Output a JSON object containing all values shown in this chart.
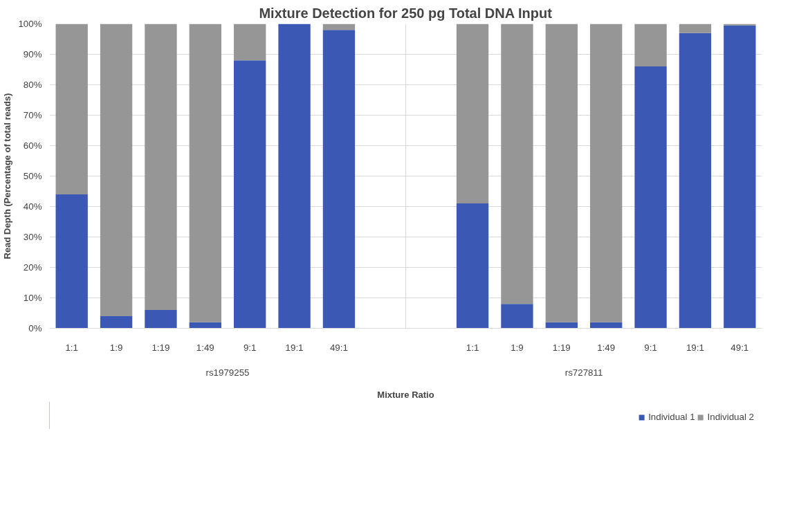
{
  "chart_data": {
    "type": "bar",
    "stacked": true,
    "title": "Mixture Detection for 250 pg Total DNA Input",
    "xlabel": "Mixture Ratio",
    "ylabel": "Read Depth (Percentage of total reads)",
    "categories": [
      "1:1",
      "1:9",
      "1:19",
      "1:49",
      "9:1",
      "19:1",
      "49:1",
      null,
      null,
      "1:1",
      "1:9",
      "1:19",
      "1:49",
      "9:1",
      "19:1",
      "49:1"
    ],
    "series": [
      {
        "name": "Individual 1",
        "color": "#3a58b4",
        "values": [
          44,
          4,
          6,
          2,
          88,
          100,
          98,
          null,
          null,
          41,
          8,
          2,
          2,
          86,
          97,
          99.5
        ]
      },
      {
        "name": "Individual 2",
        "color": "#969696",
        "values": [
          56,
          96,
          94,
          98,
          12,
          0,
          2,
          null,
          null,
          59,
          92,
          98,
          98,
          14,
          3,
          0.5
        ]
      }
    ],
    "annotations": [
      "rs1979255",
      "rs727811"
    ],
    "ylim": [
      0,
      100
    ],
    "yticks": [
      {
        "value": 0,
        "label": "0%"
      },
      {
        "value": 10,
        "label": "10%"
      },
      {
        "value": 20,
        "label": "20%"
      },
      {
        "value": 30,
        "label": "30%"
      },
      {
        "value": 40,
        "label": "40%"
      },
      {
        "value": 50,
        "label": "50%"
      },
      {
        "value": 60,
        "label": "60%"
      },
      {
        "value": 70,
        "label": "70%"
      },
      {
        "value": 80,
        "label": "80%"
      },
      {
        "value": 90,
        "label": "90%"
      },
      {
        "value": 100,
        "label": "100%"
      }
    ],
    "grid": "y",
    "legend": "bottom right"
  }
}
